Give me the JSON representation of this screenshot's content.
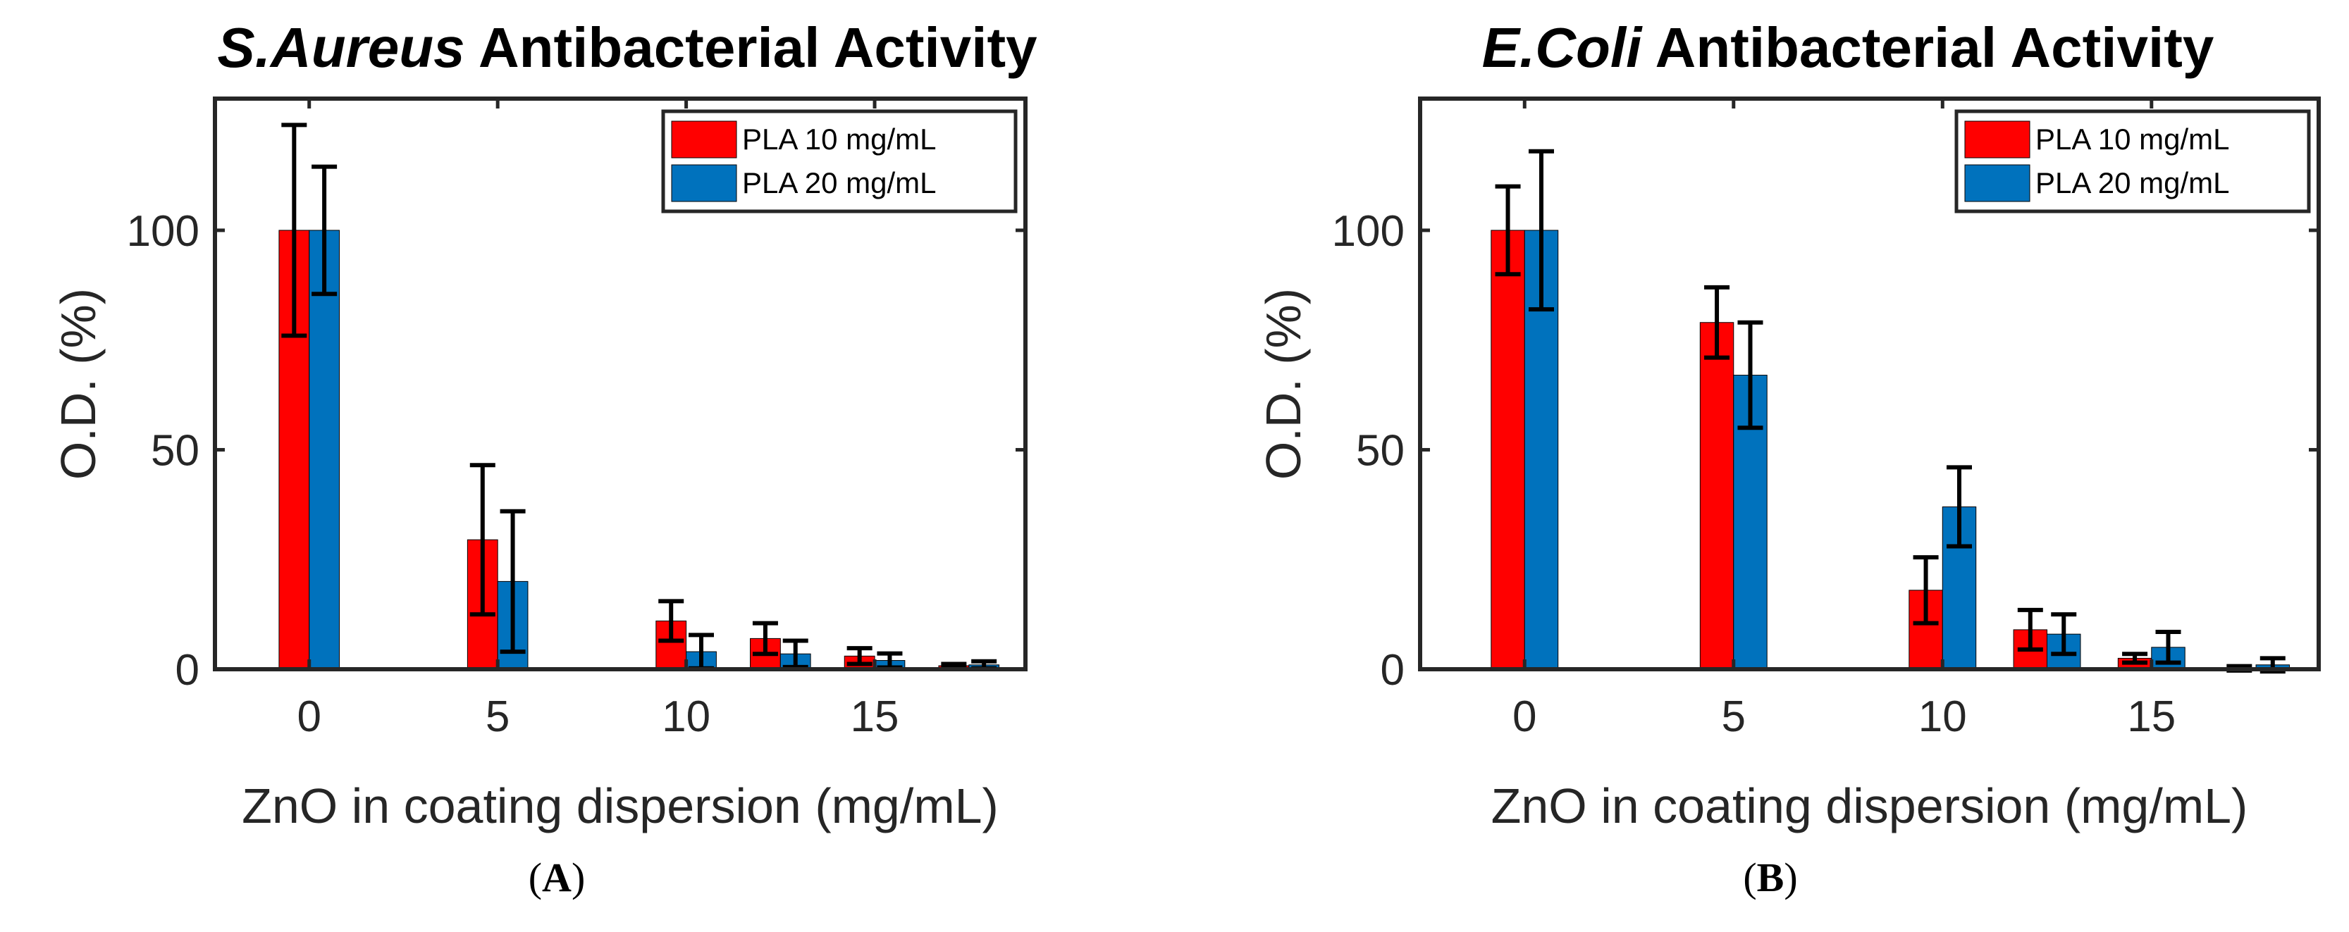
{
  "chart_data": [
    {
      "type": "bar",
      "title_italic": "S.Aureus",
      "title_rest": " Antibacterial Activity",
      "xlabel": "ZnO in coating dispersion (mg/mL)",
      "ylabel": "O.D. (%)",
      "xlim": [
        -2.5,
        19
      ],
      "ylim": [
        0,
        130
      ],
      "xticks": [
        0,
        5,
        10,
        15
      ],
      "yticks": [
        0,
        50,
        100
      ],
      "grid": false,
      "legend_position": "top-right",
      "caption": "A",
      "categories": [
        0,
        5,
        10,
        12.5,
        15,
        17.5
      ],
      "series": [
        {
          "name": "PLA 10 mg/mL",
          "color": "#ff0000",
          "values": [
            100,
            29.5,
            11,
            7,
            3,
            0.8
          ],
          "errors": [
            24,
            17,
            4.5,
            3.5,
            1.8,
            0.4
          ]
        },
        {
          "name": "PLA 20 mg/mL",
          "color": "#0072bd",
          "values": [
            100,
            20,
            4,
            3.5,
            2,
            1
          ],
          "errors": [
            14.5,
            16,
            3.8,
            3,
            1.6,
            0.8
          ]
        }
      ]
    },
    {
      "type": "bar",
      "title_italic": "E.Coli",
      "title_rest": " Antibacterial Activity",
      "xlabel": "ZnO in coating dispersion (mg/mL)",
      "ylabel": "O.D. (%)",
      "xlim": [
        -2.5,
        19
      ],
      "ylim": [
        0,
        130
      ],
      "xticks": [
        0,
        5,
        10,
        15
      ],
      "yticks": [
        0,
        50,
        100
      ],
      "grid": false,
      "legend_position": "top-right",
      "caption": "B",
      "categories": [
        0,
        5,
        10,
        12.5,
        15,
        17.5
      ],
      "series": [
        {
          "name": "PLA 10 mg/mL",
          "color": "#ff0000",
          "values": [
            100,
            79,
            18,
            9,
            2.5,
            0.2
          ],
          "errors": [
            10,
            8,
            7.5,
            4.5,
            1,
            0.5
          ]
        },
        {
          "name": "PLA 20 mg/mL",
          "color": "#0072bd",
          "values": [
            100,
            67,
            37,
            8,
            5,
            1
          ],
          "errors": [
            18,
            12,
            9,
            4.5,
            3.5,
            1.5
          ]
        }
      ]
    }
  ]
}
